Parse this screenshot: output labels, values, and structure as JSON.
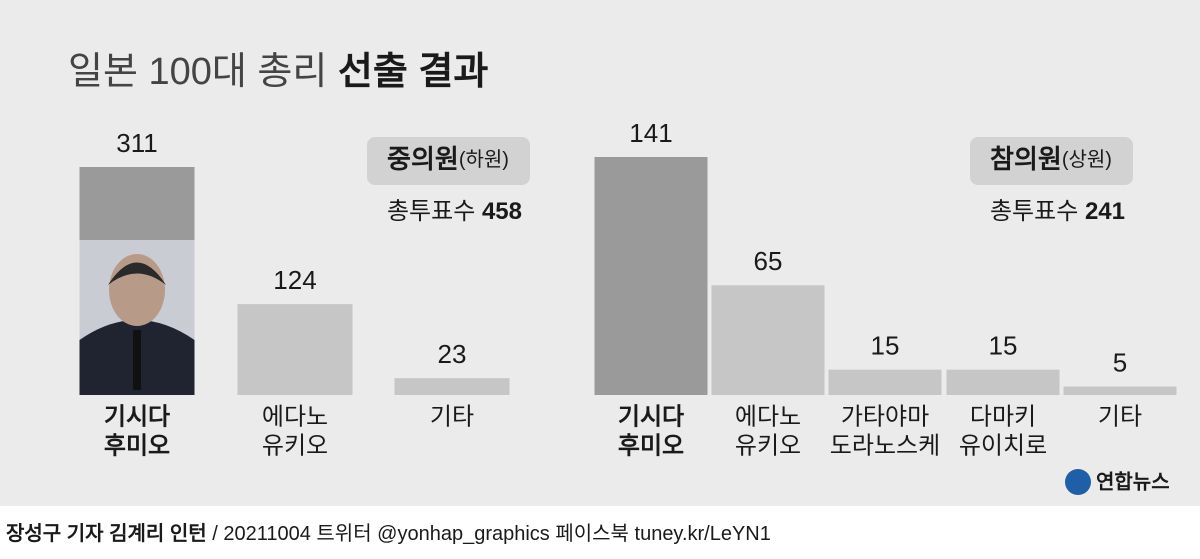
{
  "title_parts": [
    "일본 100대 총리",
    "선출 결과"
  ],
  "chart_data": [
    {
      "type": "bar",
      "name": "중의원",
      "name_note": "(하원)",
      "total_label": "총투표수",
      "total": 458,
      "categories": [
        [
          "기시다",
          "후미오"
        ],
        [
          "에다노",
          "유키오"
        ],
        [
          "기타"
        ]
      ],
      "values": [
        311,
        124,
        23
      ],
      "colors": [
        "#9a9a9a",
        "#c6c6c6",
        "#c6c6c6"
      ]
    },
    {
      "type": "bar",
      "name": "참의원",
      "name_note": "(상원)",
      "total_label": "총투표수",
      "total": 241,
      "categories": [
        [
          "기시다",
          "후미오"
        ],
        [
          "에다노",
          "유키오"
        ],
        [
          "가타야마",
          "도라노스케"
        ],
        [
          "다마키",
          "유이치로"
        ],
        [
          "기타"
        ]
      ],
      "values": [
        141,
        65,
        15,
        15,
        5
      ],
      "colors": [
        "#9a9a9a",
        "#c6c6c6",
        "#c6c6c6",
        "#c6c6c6",
        "#c6c6c6"
      ]
    }
  ],
  "logo": "연합뉴스",
  "footer": {
    "byline": "장성구 기자  김계리 인턴",
    "credit": "/ 20211004   트위터 @yonhap_graphics   페이스북 tuney.kr/LeYN1"
  }
}
